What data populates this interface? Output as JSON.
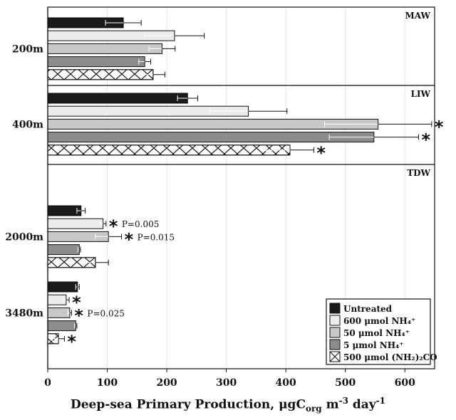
{
  "chart_data": {
    "type": "bar",
    "orientation": "horizontal",
    "xlabel_parts": {
      "main": "Deep-sea Primary Production, μgC",
      "sub": "org",
      "mid": " m",
      "sup1": "-3",
      "mid2": " day",
      "sup2": "-1"
    },
    "xlim": [
      0,
      650
    ],
    "xticks": [
      0,
      100,
      200,
      300,
      400,
      500,
      600
    ],
    "grid": true,
    "legend_position": "bottom-right",
    "series": [
      {
        "name": "Untreated",
        "fill": "#1a1a1a",
        "hatch": false
      },
      {
        "name": "600 μmol NH₄⁺",
        "fill": "#ececec",
        "hatch": false
      },
      {
        "name": "50 μmol NH₄⁺",
        "fill": "#c8c8c8",
        "hatch": false
      },
      {
        "name": "5 μmol NH₄⁺",
        "fill": "#8c8c8c",
        "hatch": false
      },
      {
        "name": "500 μmol (NH₂)₂CO",
        "fill": "#ffffff",
        "hatch": true
      }
    ],
    "panels": [
      {
        "label": "MAW",
        "depths": [
          {
            "depth": "200m",
            "values": [
              127,
              213,
              192,
              163,
              177
            ],
            "errors": [
              30,
              50,
              22,
              10,
              20
            ],
            "significant": [
              false,
              false,
              false,
              false,
              false
            ],
            "pvalues": [
              "",
              "",
              "",
              "",
              ""
            ]
          }
        ]
      },
      {
        "label": "LIW",
        "depths": [
          {
            "depth": "400m",
            "values": [
              235,
              337,
              555,
              548,
              407
            ],
            "errors": [
              17,
              65,
              90,
              75,
              40
            ],
            "significant": [
              false,
              false,
              true,
              true,
              true
            ],
            "pvalues": [
              "",
              "",
              "",
              "",
              ""
            ]
          }
        ]
      },
      {
        "label": "TDW",
        "depths": [
          {
            "depth": "2000m",
            "values": [
              56,
              93,
              102,
              53,
              80
            ],
            "errors": [
              7,
              5,
              22,
              2,
              22
            ],
            "significant": [
              false,
              true,
              true,
              false,
              false
            ],
            "pvalues": [
              "",
              "P=0.005",
              "P=0.015",
              "",
              ""
            ]
          },
          {
            "depth": "3480m",
            "values": [
              50,
              31,
              37,
              47,
              18
            ],
            "errors": [
              3,
              5,
              3,
              2,
              10
            ],
            "significant": [
              false,
              true,
              true,
              false,
              true
            ],
            "pvalues": [
              "",
              "",
              "P=0.025",
              "",
              ""
            ]
          }
        ]
      }
    ]
  }
}
